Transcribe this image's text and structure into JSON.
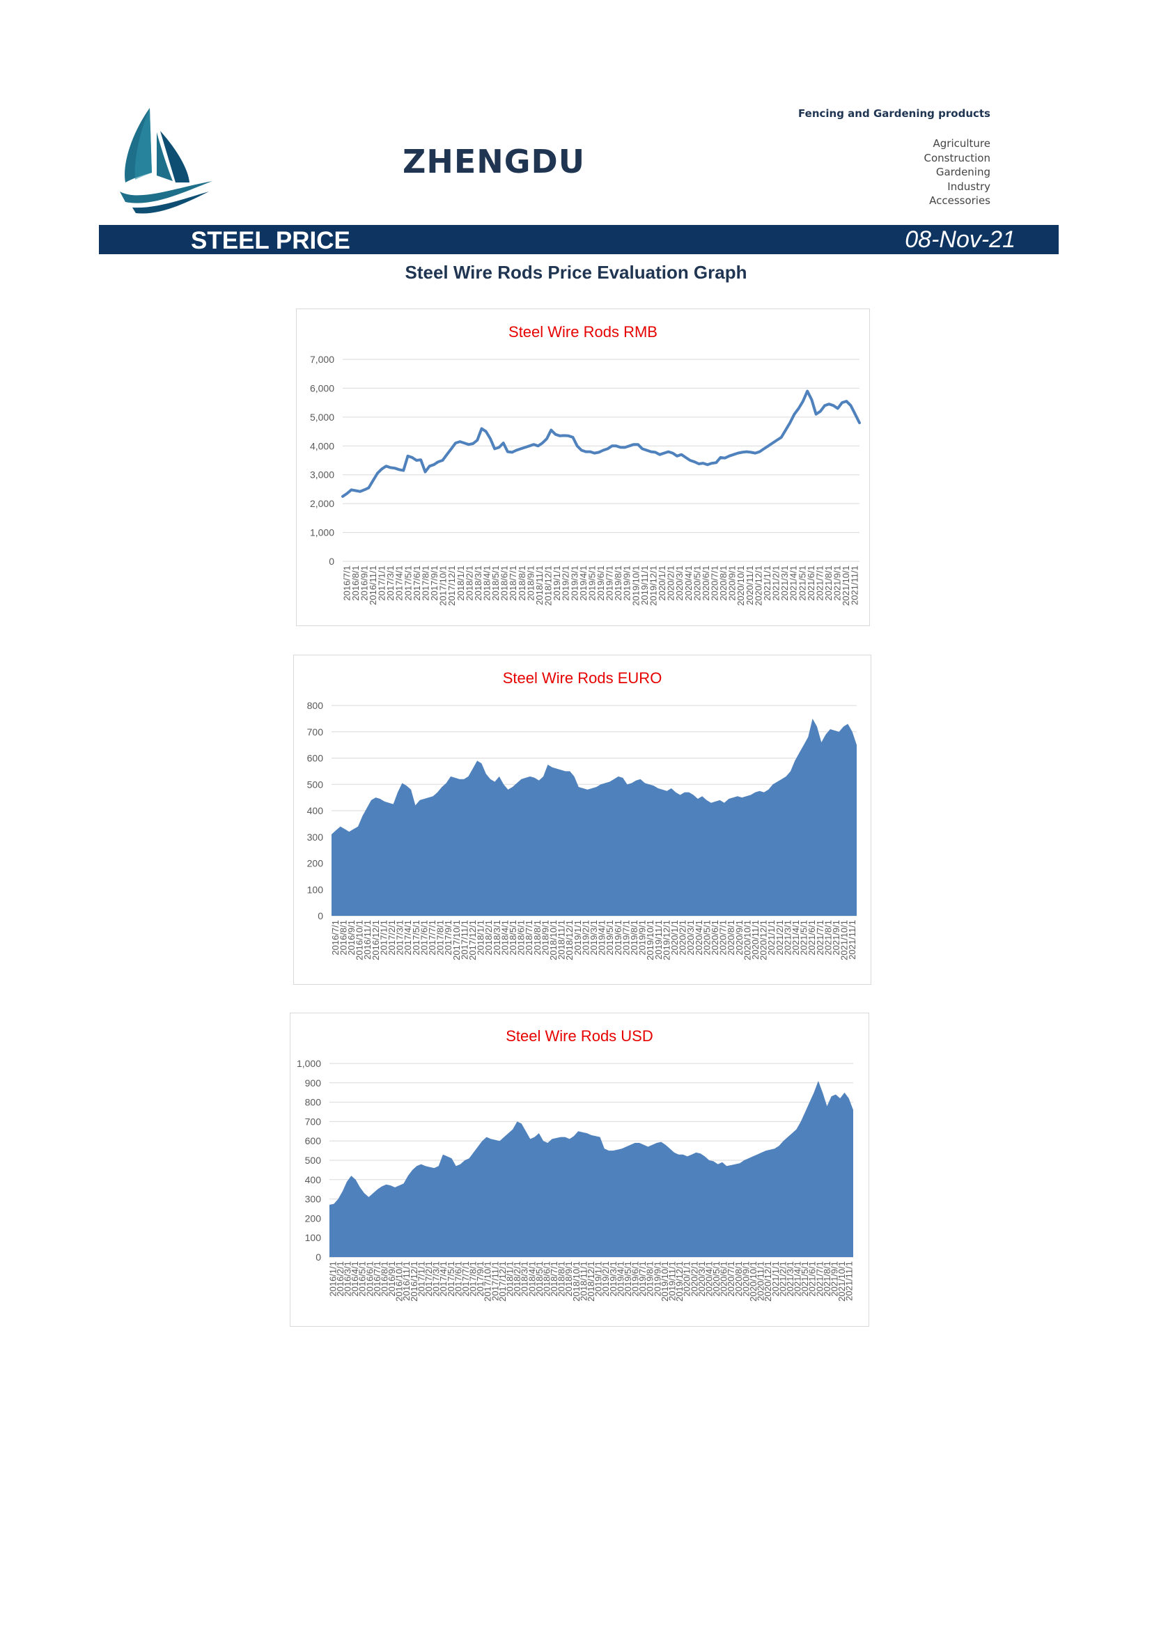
{
  "header": {
    "brand": "ZHENGDU",
    "tagline": "Fencing and Gardening products",
    "categories": [
      "Agriculture",
      "Construction",
      "Gardening",
      "Industry",
      "Accessories"
    ],
    "logo_icon": "sailboat-logo-icon"
  },
  "banner": {
    "title": "STEEL PRICE",
    "date": "08-Nov-21",
    "color": "#0e3461"
  },
  "subtitle": "Steel Wire Rods Price Evaluation Graph",
  "chart_data": [
    {
      "type": "line",
      "title": "Steel Wire Rods RMB",
      "title_color": "#e60000",
      "series_color": "#4f81bd",
      "ylim": [
        0,
        7000
      ],
      "yticks": [
        0,
        1000,
        2000,
        3000,
        4000,
        5000,
        6000,
        7000
      ],
      "ytick_labels": [
        "0",
        "1,000",
        "2,000",
        "3,000",
        "4,000",
        "5,000",
        "6,000",
        "7,000"
      ],
      "xtick_labels": [
        "2016/7/1",
        "2016/8/1",
        "2016/9/1",
        "2016/11/1",
        "2017/1/1",
        "2017/3/1",
        "2017/4/1",
        "2017/5/1",
        "2017/6/1",
        "2017/8/1",
        "2017/9/1",
        "2017/10/1",
        "2017/12/1",
        "2018/1/1",
        "2018/2/1",
        "2018/3/1",
        "2018/4/1",
        "2018/5/1",
        "2018/6/1",
        "2018/7/1",
        "2018/8/1",
        "2018/9/1",
        "2018/11/1",
        "2018/12/1",
        "2019/1/1",
        "2019/2/1",
        "2019/3/1",
        "2019/4/1",
        "2019/5/1",
        "2019/6/1",
        "2019/7/1",
        "2019/8/1",
        "2019/9/1",
        "2019/10/1",
        "2019/11/1",
        "2019/12/1",
        "2020/1/1",
        "2020/2/1",
        "2020/3/1",
        "2020/4/1",
        "2020/5/1",
        "2020/6/1",
        "2020/7/1",
        "2020/8/1",
        "2020/9/1",
        "2020/10/1",
        "2020/11/1",
        "2020/12/1",
        "2021/1/1",
        "2021/2/1",
        "2021/3/1",
        "2021/4/1",
        "2021/5/1",
        "2021/6/1",
        "2021/7/1",
        "2021/8/1",
        "2021/9/1",
        "2021/10/1",
        "2021/11/1"
      ],
      "values": [
        2250,
        2350,
        2480,
        2450,
        2420,
        2480,
        2550,
        2800,
        3050,
        3200,
        3300,
        3250,
        3230,
        3180,
        3150,
        3650,
        3600,
        3500,
        3520,
        3100,
        3300,
        3350,
        3450,
        3500,
        3700,
        3900,
        4100,
        4150,
        4100,
        4050,
        4080,
        4200,
        4600,
        4500,
        4250,
        3900,
        3950,
        4100,
        3800,
        3780,
        3850,
        3900,
        3950,
        4000,
        4050,
        4000,
        4100,
        4250,
        4550,
        4400,
        4350,
        4360,
        4350,
        4300,
        4000,
        3850,
        3800,
        3800,
        3750,
        3780,
        3850,
        3900,
        4000,
        4000,
        3950,
        3950,
        4000,
        4050,
        4050,
        3900,
        3850,
        3800,
        3780,
        3700,
        3750,
        3800,
        3750,
        3650,
        3700,
        3600,
        3500,
        3450,
        3380,
        3400,
        3350,
        3400,
        3420,
        3600,
        3580,
        3650,
        3700,
        3750,
        3780,
        3800,
        3780,
        3750,
        3800,
        3900,
        4000,
        4100,
        4200,
        4300,
        4550,
        4800,
        5100,
        5300,
        5550,
        5900,
        5600,
        5100,
        5200,
        5400,
        5450,
        5400,
        5300,
        5500,
        5550,
        5400,
        5100,
        4800
      ]
    },
    {
      "type": "area",
      "title": "Steel Wire Rods EURO",
      "title_color": "#e60000",
      "series_color": "#4f81bd",
      "ylim": [
        0,
        800
      ],
      "yticks": [
        0,
        100,
        200,
        300,
        400,
        500,
        600,
        700,
        800
      ],
      "ytick_labels": [
        "0",
        "100",
        "200",
        "300",
        "400",
        "500",
        "600",
        "700",
        "800"
      ],
      "xtick_labels": [
        "2016/7/1",
        "2016/8/1",
        "2016/9/1",
        "2016/10/1",
        "2016/11/1",
        "2016/12/1",
        "2017/1/1",
        "2017/2/1",
        "2017/3/1",
        "2017/4/1",
        "2017/5/1",
        "2017/6/1",
        "2017/7/1",
        "2017/8/1",
        "2017/9/1",
        "2017/10/1",
        "2017/11/1",
        "2017/12/1",
        "2018/1/1",
        "2018/2/1",
        "2018/3/1",
        "2018/4/1",
        "2018/5/1",
        "2018/6/1",
        "2018/7/1",
        "2018/8/1",
        "2018/9/1",
        "2018/10/1",
        "2018/11/1",
        "2018/12/1",
        "2019/1/1",
        "2019/2/1",
        "2019/3/1",
        "2019/4/1",
        "2019/5/1",
        "2019/6/1",
        "2019/7/1",
        "2019/8/1",
        "2019/9/1",
        "2019/10/1",
        "2019/11/1",
        "2019/12/1",
        "2020/1/1",
        "2020/2/1",
        "2020/3/1",
        "2020/4/1",
        "2020/5/1",
        "2020/6/1",
        "2020/7/1",
        "2020/8/1",
        "2020/9/1",
        "2020/10/1",
        "2020/11/1",
        "2020/12/1",
        "2021/1/1",
        "2021/2/1",
        "2021/3/1",
        "2021/4/1",
        "2021/5/1",
        "2021/6/1",
        "2021/7/1",
        "2021/8/1",
        "2021/9/1",
        "2021/10/1",
        "2021/11/1"
      ],
      "values": [
        310,
        325,
        340,
        330,
        320,
        330,
        340,
        380,
        410,
        440,
        450,
        445,
        435,
        430,
        425,
        470,
        505,
        495,
        480,
        420,
        440,
        445,
        450,
        455,
        470,
        490,
        505,
        530,
        525,
        520,
        520,
        530,
        560,
        590,
        580,
        540,
        520,
        510,
        530,
        500,
        480,
        490,
        505,
        520,
        525,
        530,
        525,
        515,
        530,
        575,
        565,
        560,
        555,
        550,
        550,
        530,
        490,
        485,
        480,
        485,
        490,
        500,
        505,
        510,
        520,
        530,
        525,
        500,
        505,
        515,
        520,
        505,
        500,
        495,
        485,
        480,
        475,
        485,
        470,
        460,
        470,
        470,
        460,
        445,
        455,
        440,
        430,
        435,
        440,
        430,
        445,
        450,
        455,
        450,
        455,
        460,
        470,
        475,
        470,
        480,
        500,
        510,
        520,
        530,
        550,
        590,
        620,
        650,
        680,
        750,
        720,
        660,
        690,
        710,
        705,
        700,
        720,
        730,
        700,
        650
      ]
    },
    {
      "type": "area",
      "title": "Steel Wire Rods USD",
      "title_color": "#e60000",
      "series_color": "#4f81bd",
      "ylim": [
        0,
        1000
      ],
      "yticks": [
        0,
        100,
        200,
        300,
        400,
        500,
        600,
        700,
        800,
        900,
        1000
      ],
      "ytick_labels": [
        "0",
        "100",
        "200",
        "300",
        "400",
        "500",
        "600",
        "700",
        "800",
        "900",
        "1,000"
      ],
      "xtick_labels": [
        "2016/1/1",
        "2016/2/1",
        "2016/3/1",
        "2016/4/1",
        "2016/5/1",
        "2016/6/1",
        "2016/7/1",
        "2016/8/1",
        "2016/9/1",
        "2016/10/1",
        "2016/11/1",
        "2016/12/1",
        "2017/1/1",
        "2017/2/1",
        "2017/3/1",
        "2017/4/1",
        "2017/5/1",
        "2017/6/1",
        "2017/7/1",
        "2017/8/1",
        "2017/9/1",
        "2017/10/1",
        "2017/11/1",
        "2017/12/1",
        "2018/1/1",
        "2018/2/1",
        "2018/3/1",
        "2018/4/1",
        "2018/5/1",
        "2018/6/1",
        "2018/7/1",
        "2018/8/1",
        "2018/9/1",
        "2018/10/1",
        "2018/11/1",
        "2018/12/1",
        "2019/1/1",
        "2019/2/1",
        "2019/3/1",
        "2019/4/1",
        "2019/5/1",
        "2019/6/1",
        "2019/7/1",
        "2019/8/1",
        "2019/9/1",
        "2019/10/1",
        "2019/11/1",
        "2019/12/1",
        "2020/1/1",
        "2020/2/1",
        "2020/3/1",
        "2020/4/1",
        "2020/5/1",
        "2020/6/1",
        "2020/7/1",
        "2020/8/1",
        "2020/9/1",
        "2020/10/1",
        "2020/11/1",
        "2020/12/1",
        "2021/1/1",
        "2021/2/1",
        "2021/3/1",
        "2021/4/1",
        "2021/5/1",
        "2021/6/1",
        "2021/7/1",
        "2021/8/1",
        "2021/9/1",
        "2021/10/1",
        "2021/11/1"
      ],
      "values": [
        270,
        275,
        300,
        340,
        390,
        420,
        400,
        360,
        330,
        310,
        330,
        350,
        365,
        375,
        370,
        360,
        370,
        380,
        420,
        450,
        470,
        480,
        470,
        465,
        460,
        470,
        530,
        520,
        510,
        470,
        480,
        500,
        510,
        540,
        570,
        600,
        620,
        610,
        605,
        600,
        620,
        640,
        660,
        700,
        690,
        650,
        610,
        620,
        640,
        600,
        590,
        610,
        615,
        620,
        620,
        610,
        625,
        650,
        645,
        640,
        630,
        625,
        620,
        560,
        550,
        550,
        555,
        560,
        570,
        580,
        590,
        590,
        580,
        570,
        580,
        590,
        595,
        580,
        560,
        540,
        530,
        530,
        520,
        530,
        540,
        535,
        520,
        500,
        495,
        480,
        490,
        470,
        475,
        480,
        485,
        500,
        510,
        520,
        530,
        540,
        550,
        555,
        560,
        575,
        600,
        620,
        640,
        660,
        700,
        750,
        800,
        850,
        910,
        850,
        780,
        830,
        840,
        820,
        850,
        820,
        760
      ]
    }
  ]
}
